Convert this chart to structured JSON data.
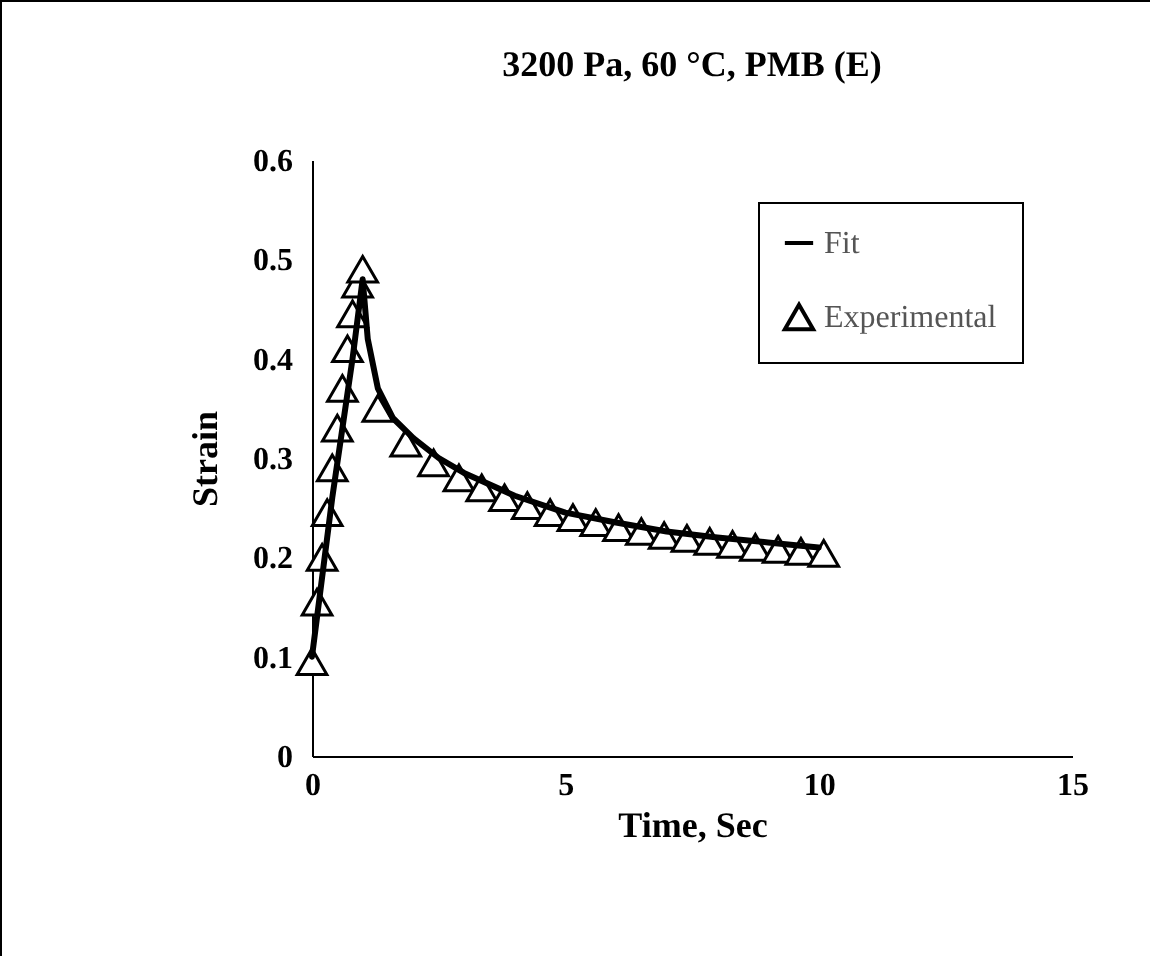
{
  "chart_data": {
    "type": "scatter",
    "title": "3200 Pa, 60 °C, PMB (E)",
    "xlabel": "Time, Sec",
    "ylabel": "Strain",
    "xlim": [
      0,
      15
    ],
    "xticks": [
      0,
      5,
      10,
      15
    ],
    "ylim": [
      0,
      0.6
    ],
    "yticks": [
      0,
      0.1,
      0.2,
      0.3,
      0.4,
      0.5,
      0.6
    ],
    "grid": false,
    "legend": "top right",
    "series": [
      {
        "name": "Fit",
        "type": "line",
        "color": "#000000",
        "marker": "none",
        "line_style": "solid",
        "x": [
          0,
          0.2,
          0.4,
          0.6,
          0.8,
          1.0,
          1.1,
          1.3,
          1.6,
          2,
          2.5,
          3,
          4,
          5,
          6,
          7,
          8,
          9,
          10
        ],
        "values": [
          0.1,
          0.18,
          0.26,
          0.33,
          0.4,
          0.48,
          0.42,
          0.37,
          0.34,
          0.32,
          0.3,
          0.285,
          0.262,
          0.245,
          0.235,
          0.226,
          0.22,
          0.215,
          0.21
        ]
      },
      {
        "name": "Experimental",
        "color": "#000000",
        "marker": "triangle",
        "x": [
          0,
          0.1,
          0.2,
          0.3,
          0.4,
          0.5,
          0.6,
          0.7,
          0.8,
          0.9,
          1.0,
          1.3,
          1.85,
          2.4,
          2.9,
          3.35,
          3.8,
          4.25,
          4.7,
          5.15,
          5.6,
          6.05,
          6.5,
          6.95,
          7.4,
          7.85,
          8.3,
          8.75,
          9.2,
          9.65,
          10.1
        ],
        "values": [
          0.095,
          0.155,
          0.2,
          0.245,
          0.29,
          0.33,
          0.37,
          0.41,
          0.445,
          0.475,
          0.49,
          0.35,
          0.315,
          0.295,
          0.28,
          0.27,
          0.26,
          0.252,
          0.245,
          0.24,
          0.235,
          0.23,
          0.226,
          0.222,
          0.219,
          0.216,
          0.213,
          0.21,
          0.208,
          0.206,
          0.204
        ]
      }
    ]
  }
}
